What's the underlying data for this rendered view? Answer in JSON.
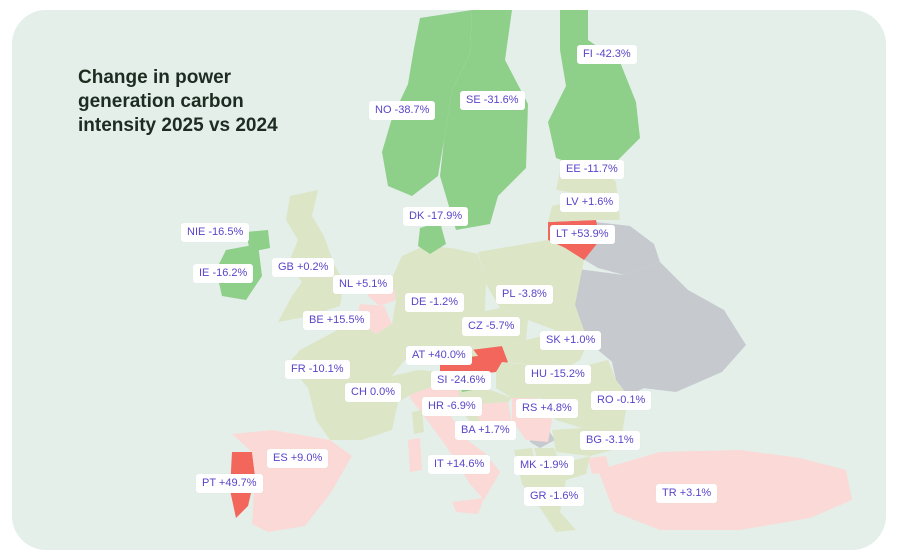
{
  "title": "Change in power generation carbon intensity 2025 vs 2024",
  "legend_colors": {
    "strong_decrease": "#8ecf8a",
    "small_change": "#dde5c7",
    "small_increase": "#fbd9d6",
    "large_increase": "#f2665c",
    "no_data": "#c6c9ce"
  },
  "countries": [
    {
      "code": "FI",
      "label": "FI -42.3%"
    },
    {
      "code": "SE",
      "label": "SE -31.6%"
    },
    {
      "code": "NO",
      "label": "NO -38.7%"
    },
    {
      "code": "EE",
      "label": "EE -11.7%"
    },
    {
      "code": "LV",
      "label": "LV +1.6%"
    },
    {
      "code": "DK",
      "label": "DK -17.9%"
    },
    {
      "code": "LT",
      "label": "LT +53.9%"
    },
    {
      "code": "NIE",
      "label": "NIE -16.5%"
    },
    {
      "code": "GB",
      "label": "GB +0.2%"
    },
    {
      "code": "IE",
      "label": "IE -16.2%"
    },
    {
      "code": "NL",
      "label": "NL +5.1%"
    },
    {
      "code": "DE",
      "label": "DE -1.2%"
    },
    {
      "code": "PL",
      "label": "PL -3.8%"
    },
    {
      "code": "BE",
      "label": "BE +15.5%"
    },
    {
      "code": "CZ",
      "label": "CZ -5.7%"
    },
    {
      "code": "SK",
      "label": "SK +1.0%"
    },
    {
      "code": "AT",
      "label": "AT +40.0%"
    },
    {
      "code": "FR",
      "label": "FR -10.1%"
    },
    {
      "code": "SI",
      "label": "SI -24.6%"
    },
    {
      "code": "HU",
      "label": "HU -15.2%"
    },
    {
      "code": "CH",
      "label": "CH 0.0%"
    },
    {
      "code": "HR",
      "label": "HR -6.9%"
    },
    {
      "code": "RS",
      "label": "RS +4.8%"
    },
    {
      "code": "RO",
      "label": "RO -0.1%"
    },
    {
      "code": "BA",
      "label": "BA +1.7%"
    },
    {
      "code": "BG",
      "label": "BG -3.1%"
    },
    {
      "code": "ES",
      "label": "ES +9.0%"
    },
    {
      "code": "IT",
      "label": "IT +14.6%"
    },
    {
      "code": "MK",
      "label": "MK -1.9%"
    },
    {
      "code": "PT",
      "label": "PT +49.7%"
    },
    {
      "code": "GR",
      "label": "GR -1.6%"
    },
    {
      "code": "TR",
      "label": "TR +3.1%"
    }
  ]
}
